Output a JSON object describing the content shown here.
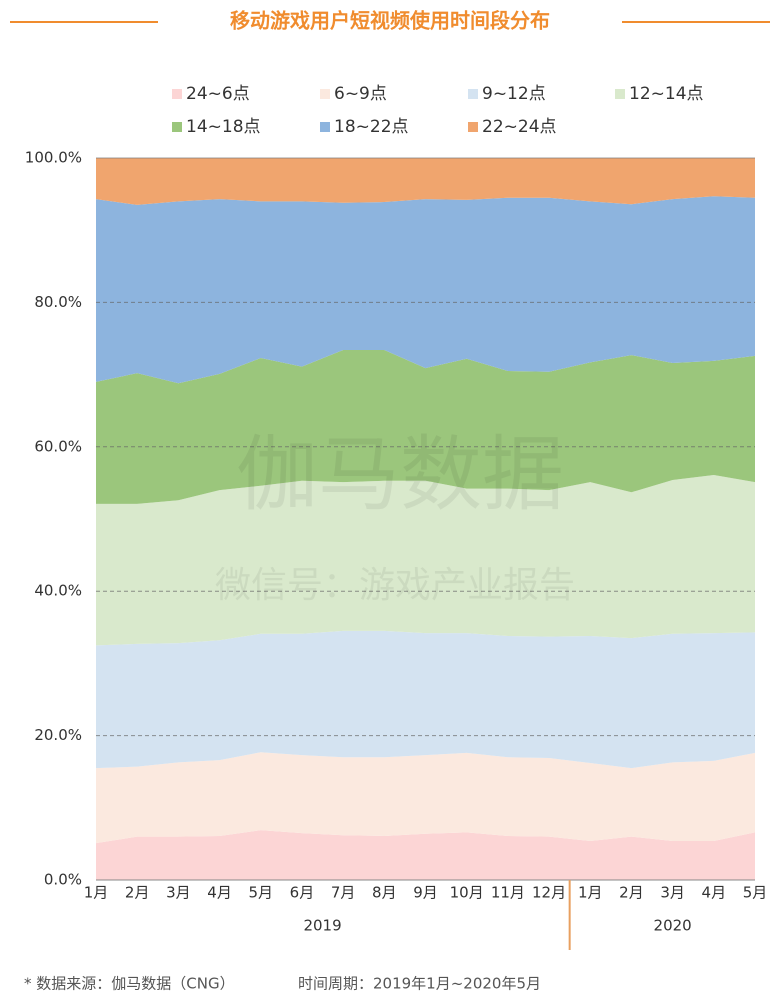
{
  "chart_data": {
    "type": "stacked-area-100",
    "title": "移动游戏用户短视频使用时间段分布",
    "categories": [
      "1月",
      "2月",
      "3月",
      "4月",
      "5月",
      "6月",
      "7月",
      "8月",
      "9月",
      "10月",
      "11月",
      "12月",
      "1月",
      "2月",
      "3月",
      "4月",
      "5月"
    ],
    "groups": [
      {
        "label": "2019",
        "count": 12
      },
      {
        "label": "2020",
        "count": 5
      }
    ],
    "series": [
      {
        "name": "24~6点",
        "color": "#fcd5d5",
        "values": [
          5.1,
          6.0,
          6.0,
          6.1,
          6.9,
          6.5,
          6.2,
          6.1,
          6.4,
          6.6,
          6.1,
          6.0,
          5.4,
          6.0,
          5.4,
          5.4,
          6.6
        ]
      },
      {
        "name": "6~9点",
        "color": "#fbe9df",
        "values": [
          10.4,
          9.7,
          10.3,
          10.5,
          10.8,
          10.8,
          10.8,
          10.9,
          10.9,
          11.0,
          10.9,
          10.9,
          10.8,
          9.5,
          10.9,
          11.1,
          11.0
        ]
      },
      {
        "name": "9~12点",
        "color": "#d4e3f1",
        "values": [
          17.0,
          17.0,
          16.5,
          16.6,
          16.4,
          16.8,
          17.5,
          17.5,
          16.9,
          16.6,
          16.8,
          16.8,
          17.6,
          18.0,
          17.8,
          17.7,
          16.7
        ]
      },
      {
        "name": "12~14点",
        "color": "#d9e9cc",
        "values": [
          19.6,
          19.4,
          19.8,
          20.8,
          20.5,
          21.2,
          20.6,
          20.8,
          21.1,
          20.0,
          20.4,
          20.3,
          21.3,
          20.2,
          21.3,
          21.9,
          20.8
        ]
      },
      {
        "name": "14~18点",
        "color": "#9bc67c",
        "values": [
          16.9,
          18.1,
          16.2,
          16.1,
          17.7,
          15.8,
          18.3,
          18.1,
          15.6,
          18.0,
          16.3,
          16.4,
          16.6,
          19.0,
          16.2,
          15.8,
          17.5
        ]
      },
      {
        "name": "18~22点",
        "color": "#8db4de",
        "values": [
          25.3,
          23.3,
          25.2,
          24.2,
          21.7,
          22.9,
          20.4,
          20.5,
          23.4,
          22.0,
          24.0,
          24.1,
          22.3,
          20.9,
          22.7,
          22.8,
          21.9
        ]
      },
      {
        "name": "22~24点",
        "color": "#f0a56e",
        "values": [
          5.7,
          6.5,
          6.0,
          5.7,
          6.0,
          6.0,
          6.2,
          6.1,
          5.7,
          5.8,
          5.5,
          5.5,
          6.0,
          6.4,
          5.7,
          5.3,
          5.5
        ]
      }
    ],
    "ylim": [
      0,
      100
    ],
    "yticks": [
      {
        "value": 0,
        "label": "0.0%"
      },
      {
        "value": 20,
        "label": "20.0%"
      },
      {
        "value": 40,
        "label": "40.0%"
      },
      {
        "value": 60,
        "label": "60.0%"
      },
      {
        "value": 80,
        "label": "80.0%"
      },
      {
        "value": 100,
        "label": "100.0%"
      }
    ],
    "grid": true,
    "watermark": [
      "伽马数据",
      "微信号：游戏产业报告"
    ],
    "footnotes": [
      "* 数据来源：伽马数据（CNG）",
      "时间周期：2019年1月~2020年5月"
    ]
  }
}
